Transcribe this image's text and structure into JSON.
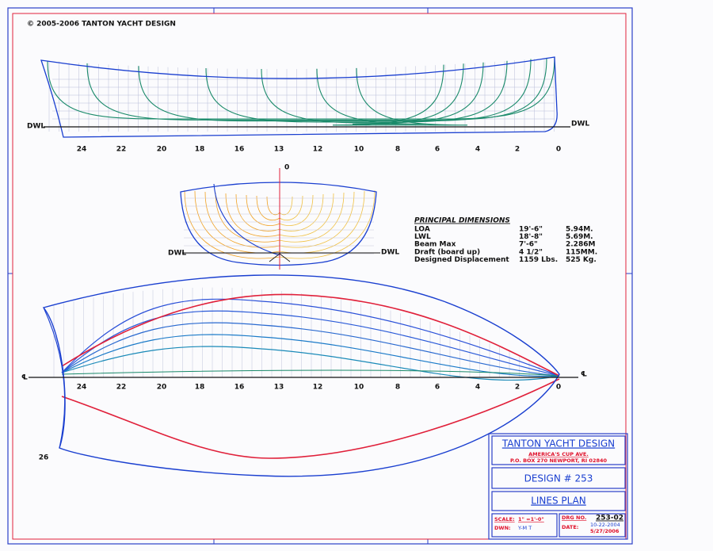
{
  "copyright": "© 2005-2006 TANTON YACHT DESIGN",
  "profile": {
    "stations": [
      "24",
      "22",
      "20",
      "18",
      "16",
      "13",
      "12",
      "10",
      "8",
      "6",
      "4",
      "2",
      "0"
    ],
    "dwl_left": "DWL",
    "dwl_right": "DWL"
  },
  "body_plan": {
    "centerline_label": "0",
    "dwl_left": "DWL",
    "dwl_right": "DWL"
  },
  "principal_dimensions": {
    "title": "PRINCIPAL DIMENSIONS",
    "rows": [
      [
        "LOA",
        "19'-6\"",
        "5.94M."
      ],
      [
        "LWL",
        "18'-8\"",
        "5.69M."
      ],
      [
        "Beam Max",
        "7'-6\"",
        "2.286M"
      ],
      [
        "Draft (board up)",
        "4 1/2\"",
        "115MM."
      ],
      [
        "Designed Displacement",
        "1159 Lbs.",
        "525 Kg."
      ]
    ]
  },
  "plan_view": {
    "stations": [
      "24",
      "22",
      "20",
      "18",
      "16",
      "13",
      "12",
      "10",
      "8",
      "6",
      "4",
      "2",
      "0"
    ],
    "centerline_left": "℄",
    "centerline_right": "℄",
    "transom_label": "26"
  },
  "title_block": {
    "firm": "TANTON YACHT DESIGN",
    "address_1": "AMERICA'S CUP AVE.",
    "address_2": "P.O. BOX 270 NEWPORT, RI 02840",
    "design": "DESIGN # 253",
    "sheet": "LINES PLAN",
    "scale_label": "SCALE:",
    "scale": "1\" =1'-0\"",
    "drawn_label": "DWN:",
    "drawn": "Y-M T",
    "drawing_no_label": "DRG NO.",
    "drawing_no": "253-02",
    "date_label": "DATE:",
    "dates": [
      "10-22-2004",
      "5/27/2006"
    ]
  }
}
